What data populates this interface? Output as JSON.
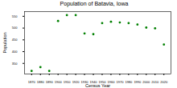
{
  "chart_data": {
    "type": "scatter",
    "title": "Population of Batavia, Iowa",
    "x_label": "Census Year",
    "y_label": "Population",
    "x": [
      1870,
      1880,
      1890,
      1900,
      1910,
      1920,
      1930,
      1940,
      1950,
      1960,
      1970,
      1980,
      1990,
      2000,
      2010,
      2020
    ],
    "values": [
      318,
      334,
      318,
      530,
      555,
      555,
      477,
      474,
      521,
      527,
      524,
      521,
      515,
      502,
      499,
      430
    ],
    "color": "#008000",
    "marker": "circle",
    "xlim": [
      1862,
      2028
    ],
    "xticks": [
      1870,
      1880,
      1890,
      1900,
      1910,
      1920,
      1930,
      1940,
      1950,
      1960,
      1970,
      1980,
      1990,
      2000,
      2010,
      2020
    ],
    "ylim": [
      305,
      570
    ],
    "yticks": [
      350,
      400,
      450,
      500,
      550
    ],
    "grid": false
  }
}
